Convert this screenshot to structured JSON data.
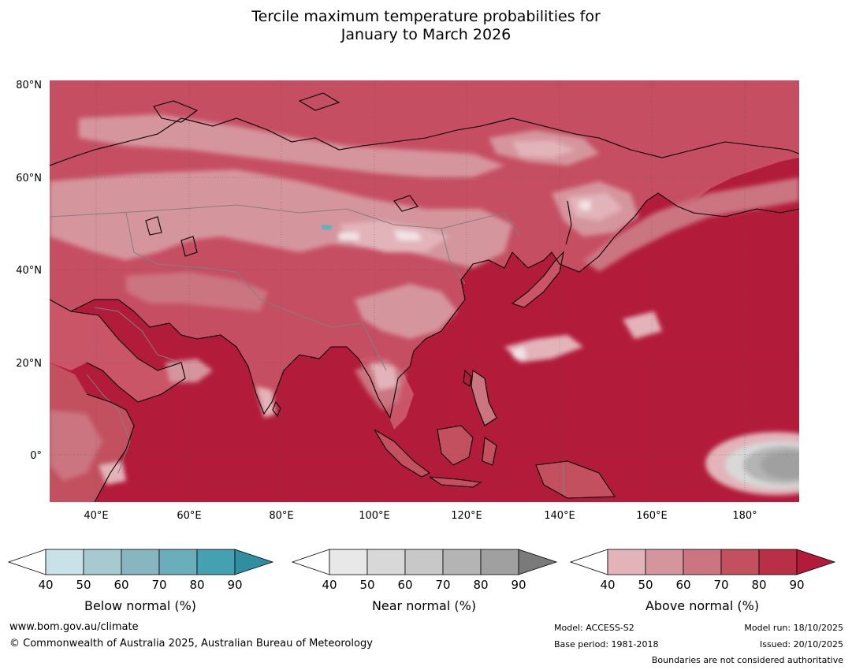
{
  "title": {
    "line1": "Tercile maximum temperature probabilities for",
    "line2": "January to March 2026"
  },
  "map": {
    "lat_labels": [
      "80°N",
      "60°N",
      "40°N",
      "20°N",
      "0°"
    ],
    "lon_labels": [
      "40°E",
      "60°E",
      "80°E",
      "100°E",
      "120°E",
      "140°E",
      "160°E",
      "180°"
    ],
    "ocean_color": "#b31b3a",
    "land_base_color": "#c64e62",
    "coast_color": "#000000",
    "border_color": "#808080"
  },
  "colorbars": [
    {
      "name": "below-normal",
      "title": "Below normal (%)",
      "ticks": [
        "40",
        "50",
        "60",
        "70",
        "80",
        "90"
      ],
      "colors": [
        "#c9e2e8",
        "#a7c9d0",
        "#87b6c1",
        "#6baebb",
        "#45a0b1",
        "#2f8fa1"
      ]
    },
    {
      "name": "near-normal",
      "title": "Near normal (%)",
      "ticks": [
        "40",
        "50",
        "60",
        "70",
        "80",
        "90"
      ],
      "colors": [
        "#e8e8e8",
        "#d8d8d8",
        "#c8c8c8",
        "#b4b4b4",
        "#a0a0a0",
        "#7a7a7a"
      ]
    },
    {
      "name": "above-normal",
      "title": "Above normal (%)",
      "ticks": [
        "40",
        "50",
        "60",
        "70",
        "80",
        "90"
      ],
      "colors": [
        "#e2b4ba",
        "#d5959d",
        "#cb7581",
        "#c2505f",
        "#b92f46",
        "#b31b3a"
      ]
    }
  ],
  "footer": {
    "website": "www.bom.gov.au/climate",
    "copyright": "© Commonwealth of Australia 2025, Australian Bureau of Meteorology",
    "model": "Model: ACCESS-S2",
    "base_period": "Base period: 1981-2018",
    "model_run": "Model run: 18/10/2025",
    "issued": "Issued: 20/10/2025",
    "boundaries": "Boundaries are not considered authoritative"
  }
}
